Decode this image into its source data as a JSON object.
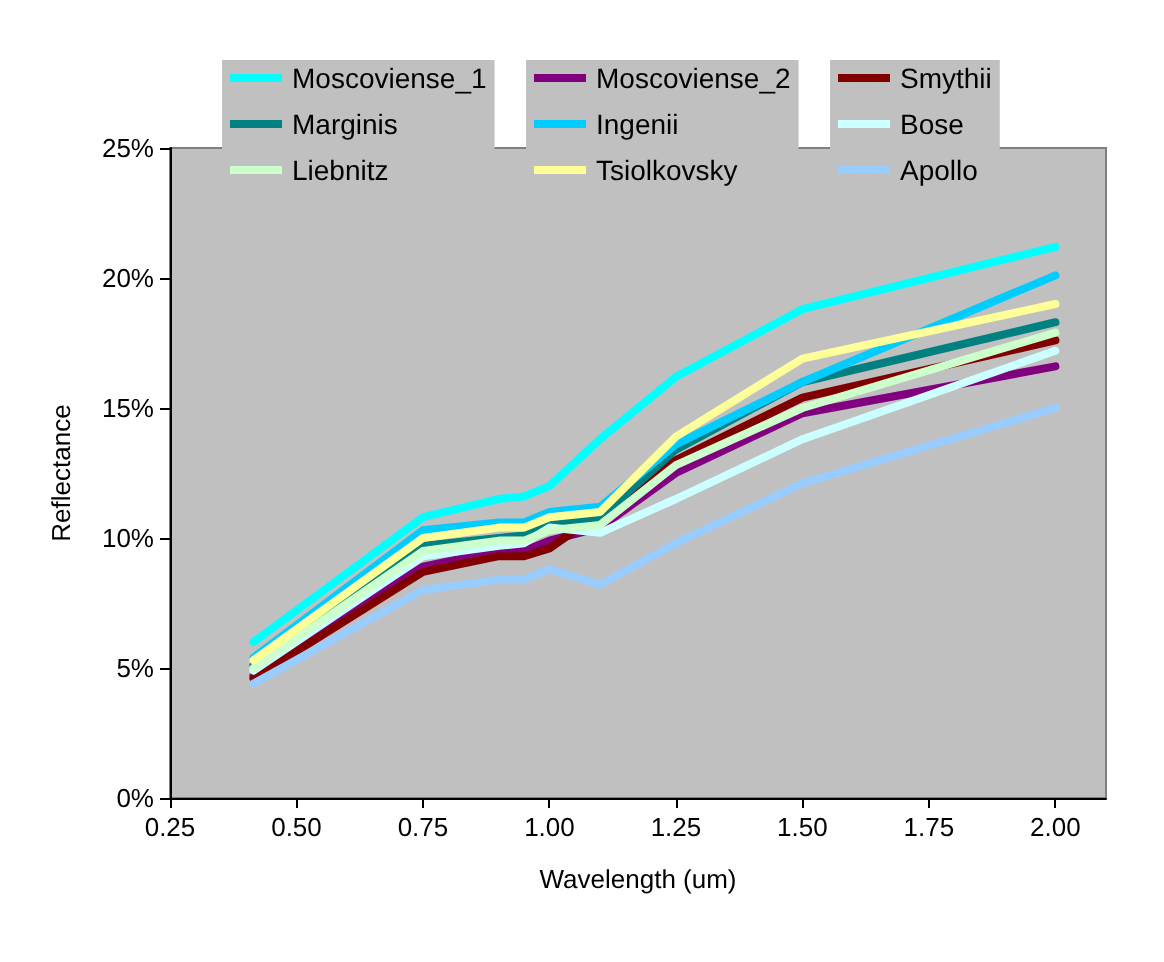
{
  "chart_data": {
    "type": "line",
    "xlabel": "Wavelength (um)",
    "ylabel": "Reflectance",
    "x": [
      0.415,
      0.75,
      0.9,
      0.95,
      1.0,
      1.1,
      1.25,
      1.5,
      2.0
    ],
    "series": [
      {
        "name": "Moscoviense_1",
        "color": "#00ffff",
        "values": [
          6.0,
          10.8,
          11.5,
          11.6,
          12.0,
          13.8,
          16.2,
          18.8,
          21.2
        ]
      },
      {
        "name": "Moscoviense_2",
        "color": "#800080",
        "values": [
          4.7,
          8.9,
          9.5,
          9.5,
          9.9,
          10.4,
          12.5,
          14.8,
          16.6
        ]
      },
      {
        "name": "Smythii",
        "color": "#800000",
        "values": [
          4.6,
          8.7,
          9.3,
          9.3,
          9.6,
          null,
          13.0,
          15.4,
          17.6
        ]
      },
      {
        "name": "Marginis",
        "color": "#008080",
        "values": [
          5.1,
          9.7,
          10.0,
          10.1,
          10.5,
          10.8,
          13.4,
          16.0,
          18.3
        ]
      },
      {
        "name": "Ingenii",
        "color": "#00ccff",
        "values": [
          5.4,
          10.3,
          10.6,
          10.6,
          11.0,
          11.2,
          13.6,
          16.0,
          20.1
        ]
      },
      {
        "name": "Bose",
        "color": "#ccffff",
        "values": [
          4.9,
          9.3,
          9.7,
          9.8,
          10.4,
          10.2,
          11.5,
          13.8,
          17.2
        ]
      },
      {
        "name": "Liebnitz",
        "color": "#ccffcc",
        "values": [
          5.0,
          9.5,
          9.9,
          9.9,
          10.3,
          10.5,
          12.8,
          15.0,
          17.9
        ]
      },
      {
        "name": "Tsiolkovsky",
        "color": "#ffff99",
        "values": [
          5.3,
          10.0,
          10.4,
          10.4,
          10.8,
          11.0,
          13.9,
          16.9,
          19.0
        ]
      },
      {
        "name": "Apollo",
        "color": "#99ccff",
        "values": [
          4.4,
          8.0,
          8.4,
          8.4,
          8.8,
          8.2,
          9.8,
          12.1,
          15.0
        ]
      }
    ],
    "xlim": [
      0.25,
      2.1
    ],
    "xticks": [
      {
        "value": 0.25,
        "label": "0.25"
      },
      {
        "value": 0.5,
        "label": "0.50"
      },
      {
        "value": 0.75,
        "label": "0.75"
      },
      {
        "value": 1.0,
        "label": "1.00"
      },
      {
        "value": 1.25,
        "label": "1.25"
      },
      {
        "value": 1.5,
        "label": "1.50"
      },
      {
        "value": 1.75,
        "label": "1.75"
      },
      {
        "value": 2.0,
        "label": "2.00"
      }
    ],
    "ylim": [
      0,
      25
    ],
    "yticks": [
      {
        "value": 0,
        "label": "0%"
      },
      {
        "value": 5,
        "label": "5%"
      },
      {
        "value": 10,
        "label": "10%"
      },
      {
        "value": 15,
        "label": "15%"
      },
      {
        "value": 20,
        "label": "20%"
      },
      {
        "value": 25,
        "label": "25%"
      }
    ],
    "grid": false,
    "legend": "top",
    "marker": "none",
    "line_style": "solid"
  }
}
